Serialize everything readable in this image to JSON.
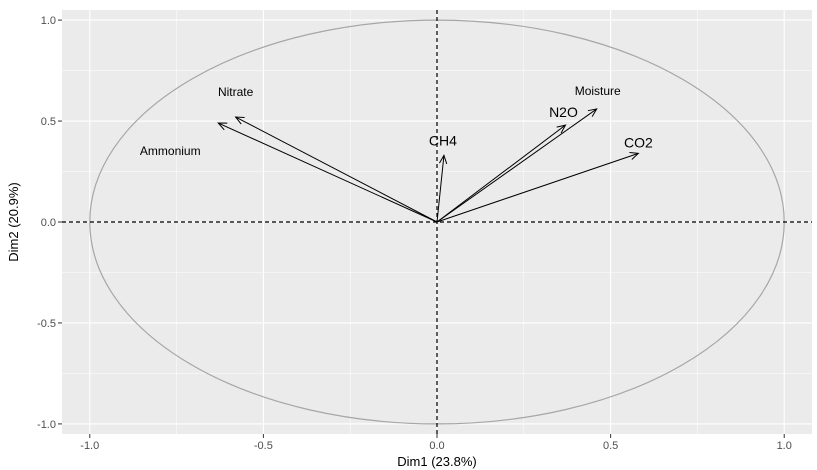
{
  "chart_data": {
    "type": "scatter",
    "subtype": "pca-variable-correlation-circle",
    "title": "",
    "xlabel": "Dim1 (23.8%)",
    "ylabel": "Dim2 (20.9%)",
    "xlim": [
      -1.08,
      1.08
    ],
    "ylim": [
      -1.05,
      1.05
    ],
    "xticks": [
      -1.0,
      -0.5,
      0.0,
      0.5,
      1.0
    ],
    "xtick_labels": [
      "-1.0",
      "-0.5",
      "0.0",
      "0.5",
      "1.0"
    ],
    "yticks": [
      -1.0,
      -0.5,
      0.0,
      0.5,
      1.0
    ],
    "ytick_labels": [
      "-1.0",
      "-0.5",
      "0.0",
      "0.5",
      "1.0"
    ],
    "grid": true,
    "unit_circle": true,
    "reference_lines": [
      {
        "axis": "x",
        "value": 0,
        "style": "dashed"
      },
      {
        "axis": "y",
        "value": 0,
        "style": "dashed"
      }
    ],
    "variables": [
      {
        "name": "Nitrate",
        "x": -0.58,
        "y": 0.52
      },
      {
        "name": "Ammonium",
        "x": -0.63,
        "y": 0.49
      },
      {
        "name": "CH4",
        "x": 0.02,
        "y": 0.33
      },
      {
        "name": "N2O",
        "x": 0.37,
        "y": 0.48
      },
      {
        "name": "Moisture",
        "x": 0.46,
        "y": 0.56
      },
      {
        "name": "CO2",
        "x": 0.58,
        "y": 0.34
      }
    ],
    "colors": {
      "panel": "#ebebeb",
      "grid": "#ffffff",
      "circle": "#a6a6a6",
      "arrow": "#000000"
    }
  }
}
